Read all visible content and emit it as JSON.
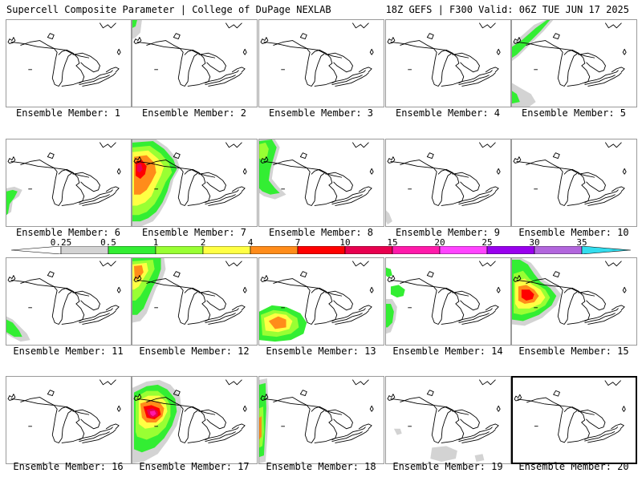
{
  "header": {
    "title": "Supercell Composite Parameter | College of DuPage NEXLAB",
    "run_info": "18Z GEFS | F300 Valid: 06Z TUE JUN 17 2025"
  },
  "colorbar": {
    "labels": [
      "0.25",
      "0.5",
      "1",
      "2",
      "4",
      "7",
      "10",
      "15",
      "20",
      "25",
      "30",
      "35"
    ],
    "colors": [
      "#d3d3d3",
      "#33ee33",
      "#99ff33",
      "#ffff44",
      "#ff8c1a",
      "#ff0000",
      "#e8004f",
      "#ff1aaa",
      "#ff44ff",
      "#9900ee",
      "#b266dd",
      "#33ddee"
    ]
  },
  "panels": [
    {
      "label": "Ensemble Member: 1"
    },
    {
      "label": "Ensemble Member: 2"
    },
    {
      "label": "Ensemble Member: 3"
    },
    {
      "label": "Ensemble Member: 4"
    },
    {
      "label": "Ensemble Member: 5"
    },
    {
      "label": "Ensemble Member: 6"
    },
    {
      "label": "Ensemble Member: 7"
    },
    {
      "label": "Ensemble Member: 8"
    },
    {
      "label": "Ensemble Member: 9"
    },
    {
      "label": "Ensemble Member: 10"
    },
    {
      "label": "Ensemble Member: 11"
    },
    {
      "label": "Ensemble Member: 12"
    },
    {
      "label": "Ensemble Member: 13"
    },
    {
      "label": "Ensemble Member: 14"
    },
    {
      "label": "Ensemble Member: 15"
    },
    {
      "label": "Ensemble Member: 16"
    },
    {
      "label": "Ensemble Member: 17"
    },
    {
      "label": "Ensemble Member: 18"
    },
    {
      "label": "Ensemble Member: 19"
    },
    {
      "label": "Ensemble Member: 20",
      "selected": true
    }
  ]
}
